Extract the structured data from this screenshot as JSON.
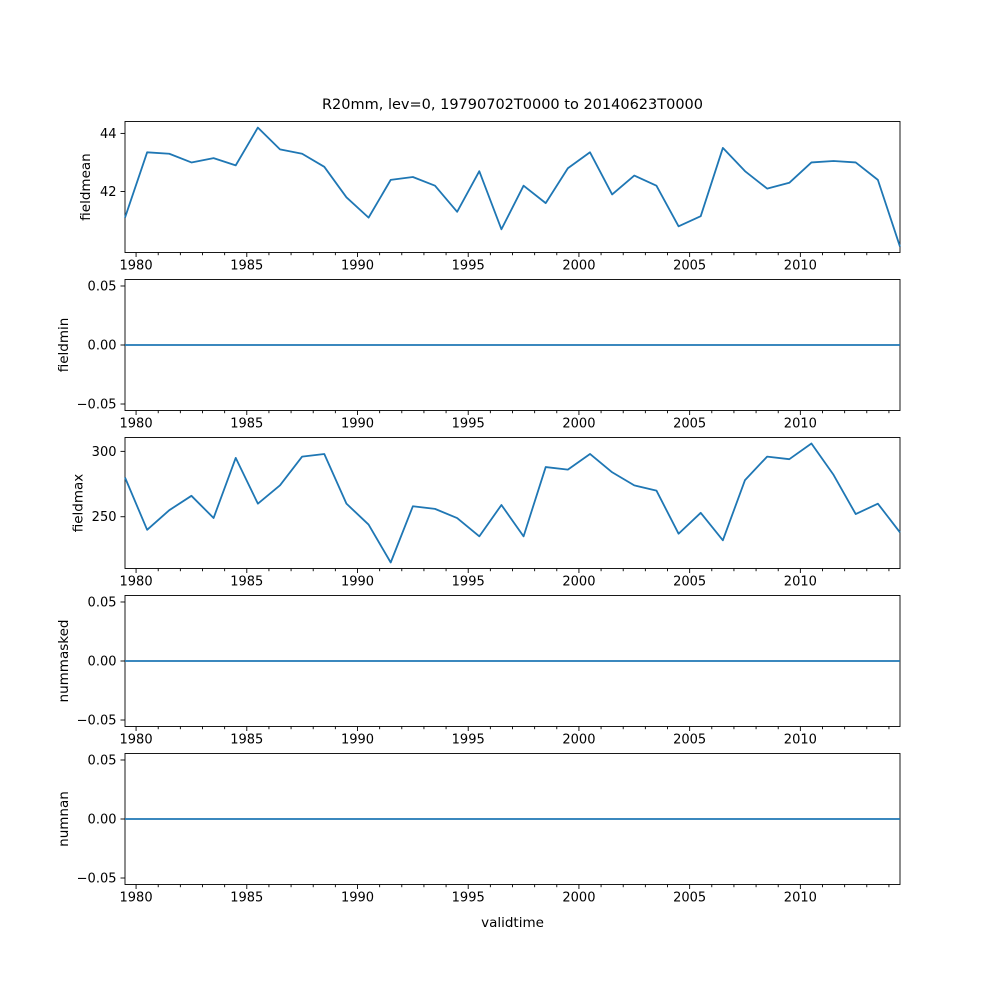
{
  "figure": {
    "background": "#ffffff",
    "text_color": "#000000",
    "line_color": "#1f77b4"
  },
  "chart_data": {
    "type": "line",
    "title": "R20mm, lev=0, 19790702T0000 to 20140623T0000",
    "xlabel": "validtime",
    "legend": "none",
    "grid": false,
    "xlim": [
      1979.5,
      2014.5
    ],
    "xticks_major": {
      "values": [
        1980,
        1985,
        1990,
        1995,
        2000,
        2005,
        2010
      ],
      "labels": [
        "1980",
        "1985",
        "1990",
        "1995",
        "2000",
        "2005",
        "2010"
      ]
    },
    "xticks_minor": [
      1981,
      1982,
      1983,
      1984,
      1986,
      1987,
      1988,
      1989,
      1991,
      1992,
      1993,
      1994,
      1996,
      1997,
      1998,
      1999,
      2001,
      2002,
      2003,
      2004,
      2006,
      2007,
      2008,
      2009,
      2011,
      2012,
      2013,
      2014
    ],
    "x": [
      1979.5,
      1980.5,
      1981.5,
      1982.5,
      1983.5,
      1984.5,
      1985.5,
      1986.5,
      1987.5,
      1988.5,
      1989.5,
      1990.5,
      1991.5,
      1992.5,
      1993.5,
      1994.5,
      1995.5,
      1996.5,
      1997.5,
      1998.5,
      1999.5,
      2000.5,
      2001.5,
      2002.5,
      2003.5,
      2004.5,
      2005.5,
      2006.5,
      2007.5,
      2008.5,
      2009.5,
      2010.5,
      2011.5,
      2012.5,
      2013.5,
      2014.5
    ],
    "panels": [
      {
        "name": "fieldmean",
        "ylabel": "fieldmean",
        "ylim": [
          39.9,
          44.41
        ],
        "yticks": {
          "values": [
            42,
            44
          ],
          "labels": [
            "42",
            "44"
          ]
        },
        "values": [
          41.1,
          43.35,
          43.3,
          43.0,
          43.15,
          42.9,
          44.2,
          43.45,
          43.3,
          42.85,
          41.8,
          41.1,
          42.4,
          42.5,
          42.2,
          41.3,
          42.7,
          40.7,
          42.2,
          41.6,
          42.8,
          43.35,
          41.9,
          42.55,
          42.2,
          40.8,
          41.15,
          43.5,
          42.7,
          42.1,
          42.3,
          43.0,
          43.05,
          43.0,
          42.4,
          40.1
        ]
      },
      {
        "name": "fieldmin",
        "ylabel": "fieldmin",
        "ylim": [
          -0.0555,
          0.0555
        ],
        "yticks": {
          "values": [
            -0.05,
            0.0,
            0.05
          ],
          "labels": [
            "−0.05",
            "0.00",
            "0.05"
          ]
        },
        "values": [
          0,
          0,
          0,
          0,
          0,
          0,
          0,
          0,
          0,
          0,
          0,
          0,
          0,
          0,
          0,
          0,
          0,
          0,
          0,
          0,
          0,
          0,
          0,
          0,
          0,
          0,
          0,
          0,
          0,
          0,
          0,
          0,
          0,
          0,
          0,
          0
        ]
      },
      {
        "name": "fieldmax",
        "ylabel": "fieldmax",
        "ylim": [
          210.4,
          310.6
        ],
        "yticks": {
          "values": [
            250,
            300
          ],
          "labels": [
            "250",
            "300"
          ]
        },
        "values": [
          280,
          240,
          255,
          266,
          249,
          295,
          260,
          274,
          296,
          298,
          260,
          244,
          215,
          258,
          256,
          249,
          235,
          259,
          235,
          288,
          286,
          298,
          284,
          274,
          270,
          237,
          253,
          232,
          278,
          296,
          294,
          306,
          282,
          252,
          260,
          238
        ]
      },
      {
        "name": "nummasked",
        "ylabel": "nummasked",
        "ylim": [
          -0.0555,
          0.0555
        ],
        "yticks": {
          "values": [
            -0.05,
            0.0,
            0.05
          ],
          "labels": [
            "−0.05",
            "0.00",
            "0.05"
          ]
        },
        "values": [
          0,
          0,
          0,
          0,
          0,
          0,
          0,
          0,
          0,
          0,
          0,
          0,
          0,
          0,
          0,
          0,
          0,
          0,
          0,
          0,
          0,
          0,
          0,
          0,
          0,
          0,
          0,
          0,
          0,
          0,
          0,
          0,
          0,
          0,
          0,
          0
        ]
      },
      {
        "name": "numnan",
        "ylabel": "numnan",
        "ylim": [
          -0.0555,
          0.0555
        ],
        "yticks": {
          "values": [
            -0.05,
            0.0,
            0.05
          ],
          "labels": [
            "−0.05",
            "0.00",
            "0.05"
          ]
        },
        "values": [
          0,
          0,
          0,
          0,
          0,
          0,
          0,
          0,
          0,
          0,
          0,
          0,
          0,
          0,
          0,
          0,
          0,
          0,
          0,
          0,
          0,
          0,
          0,
          0,
          0,
          0,
          0,
          0,
          0,
          0,
          0,
          0,
          0,
          0,
          0,
          0
        ]
      }
    ]
  }
}
